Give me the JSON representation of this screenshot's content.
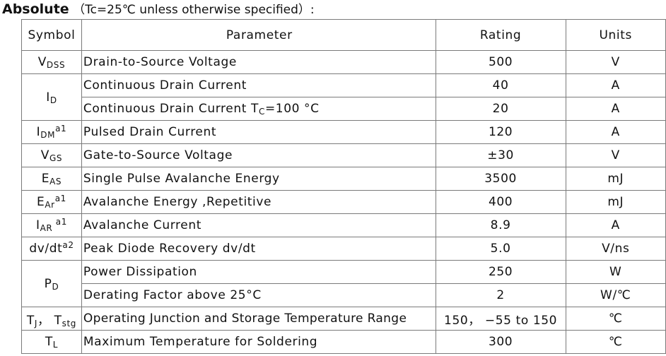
{
  "heading": {
    "title": "Absolute",
    "note": "（Tc=25℃  unless otherwise specified）:"
  },
  "table": {
    "headers": {
      "symbol": "Symbol",
      "parameter": "Parameter",
      "rating": "Rating",
      "units": "Units"
    },
    "rows": [
      {
        "symbol": {
          "main": "V",
          "sub": "DSS",
          "sup": "",
          "tail": ""
        },
        "parameter": "Drain-to-Source Voltage",
        "rating": "500",
        "units": "V"
      },
      {
        "symbol": {
          "main": "I",
          "sub": "D",
          "sup": "",
          "tail": ""
        },
        "parameter": "Continuous Drain Current",
        "rating": "40",
        "units": "A"
      },
      {
        "symbol": null,
        "parameter": "Continuous Drain Current T",
        "parameter_sub": "C",
        "parameter_tail": "=100 °C",
        "rating": "20",
        "units": "A"
      },
      {
        "symbol": {
          "main": "I",
          "sub": "DM",
          "sup": "a1",
          "tail": ""
        },
        "parameter": "Pulsed Drain Current",
        "rating": "120",
        "units": "A"
      },
      {
        "symbol": {
          "main": "V",
          "sub": "GS",
          "sup": "",
          "tail": ""
        },
        "parameter": "Gate-to-Source Voltage",
        "rating": "±30",
        "units": "V"
      },
      {
        "symbol": {
          "main": "E",
          "sub": "AS",
          "sup": "",
          "tail": ""
        },
        "parameter": "Single Pulse Avalanche Energy",
        "rating": "3500",
        "units": "mJ"
      },
      {
        "symbol": {
          "main": "E",
          "sub": "Ar",
          "sup": "a1",
          "tail": ""
        },
        "parameter": "Avalanche Energy ,Repetitive",
        "rating": "400",
        "units": "mJ"
      },
      {
        "symbol": {
          "main": "I",
          "sub": "AR",
          "sup": " a1",
          "tail": ""
        },
        "parameter": "Avalanche Current",
        "rating": "8.9",
        "units": "A"
      },
      {
        "symbol": {
          "main": "dv/dt",
          "sub": "",
          "sup": "a2",
          "tail": ""
        },
        "parameter": "Peak Diode Recovery dv/dt",
        "rating": "5.0",
        "units": "V/ns"
      },
      {
        "symbol": {
          "main": "P",
          "sub": "D",
          "sup": "",
          "tail": ""
        },
        "parameter": "Power Dissipation",
        "rating": "250",
        "units": "W"
      },
      {
        "symbol": null,
        "parameter": "Derating Factor above 25°C",
        "parameter_sub": "",
        "parameter_tail": "",
        "rating": "2",
        "units": "W/℃"
      },
      {
        "symbol": {
          "main": "T",
          "sub": "J",
          "sup": "",
          "tail": "， T",
          "tail_sub": "stg"
        },
        "parameter": "Operating Junction and Storage Temperature Range",
        "rating": "150，  −55 to 150",
        "units": "℃"
      },
      {
        "symbol": {
          "main": "T",
          "sub": "L",
          "sup": "",
          "tail": ""
        },
        "parameter": "Maximum Temperature for Soldering",
        "rating": "300",
        "units": "℃"
      }
    ]
  }
}
